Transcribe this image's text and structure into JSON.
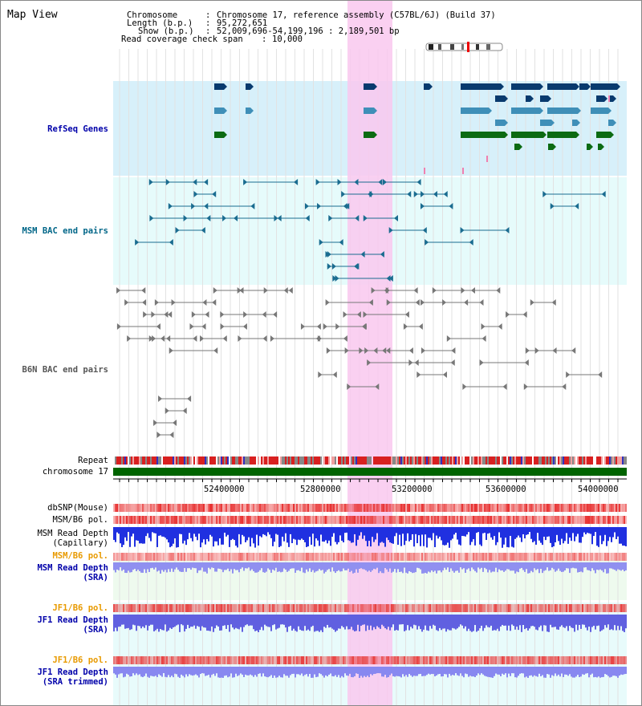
{
  "title": "Map View",
  "header": {
    "chromosome_key": "Chromosome",
    "chromosome_val": "Chromosome 17, reference assembly (C57BL/6J) (Build 37)",
    "length_key": "Length (b.p.)",
    "length_val": "95,272,651",
    "show_key": "Show (b.p.)",
    "show_val": "52,009,696-54,199,196 : 2,189,501 bp",
    "span_key": "Read coverage check span",
    "span_val": "10,000"
  },
  "tracks": {
    "refseq": "RefSeq Genes",
    "msm_bac": "MSM BAC end pairs",
    "b6n_bac": "B6N BAC end pairs",
    "repeat": "Repeat",
    "chromosome": "chromosome 17",
    "dbsnp": "dbSNP(Mouse)",
    "msm_b6_pol_1": "MSM/B6 pol.",
    "msm_read_depth_cap_1": "MSM Read Depth",
    "msm_read_depth_cap_2": "(Capillary)",
    "msm_b6_pol_2": "MSM/B6 pol.",
    "msm_read_depth_sra_1": "MSM Read Depth",
    "msm_read_depth_sra_2": "(SRA)",
    "jf1_b6_pol_1": "JF1/B6 pol.",
    "jf1_read_depth_sra_1": "JF1 Read Depth",
    "jf1_read_depth_sra_2": "(SRA)",
    "jf1_b6_pol_2": "JF1/B6 pol.",
    "jf1_read_depth_trim_1": "JF1 Read Depth",
    "jf1_read_depth_trim_2": "(SRA trimmed)"
  },
  "axis": {
    "ticks": [
      "52400000",
      "52800000",
      "53200000",
      "53600000",
      "54000000"
    ]
  },
  "colors": {
    "refseq_label": "#0000aa",
    "msm_label": "#006688",
    "orange_label": "#e89a00",
    "blue_label": "#0000aa",
    "highlight": "#f9c8ee",
    "refseq_bg": "#d7f0fa",
    "msm_bg": "#e6fbfb"
  }
}
